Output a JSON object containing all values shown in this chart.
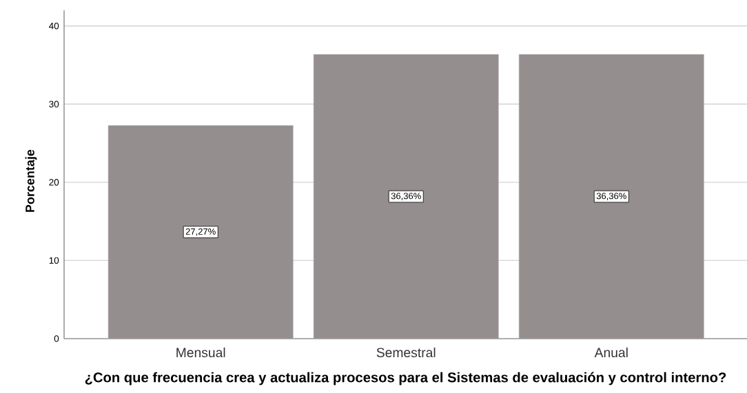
{
  "chart_data": {
    "type": "bar",
    "xlabel": "¿Con que frecuencia crea y actualiza procesos para el Sistemas de evaluación y control interno?",
    "ylabel": "Porcentaje",
    "categories": [
      "Mensual",
      "Semestral",
      "Anual"
    ],
    "values": [
      27.27,
      36.36,
      36.36
    ],
    "value_labels": [
      "27,27%",
      "36,36%",
      "36,36%"
    ],
    "color": "#948f8e",
    "ylim": [
      0,
      42
    ],
    "yticks": [
      0,
      10,
      20,
      30,
      40
    ],
    "grid": "y"
  }
}
